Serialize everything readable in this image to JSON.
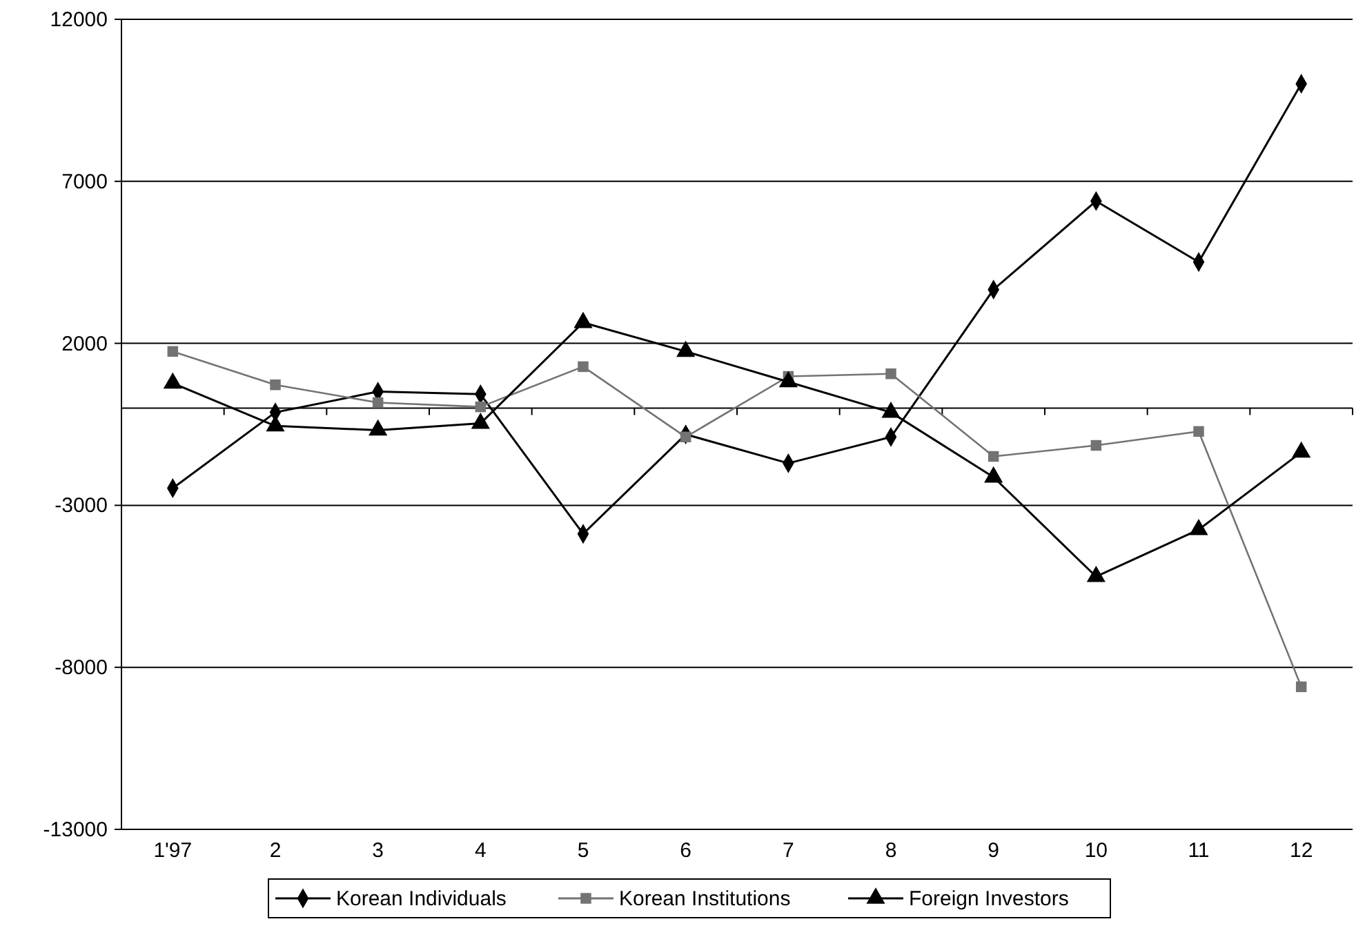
{
  "chart_data": {
    "type": "line",
    "categories": [
      "1'97",
      "2",
      "3",
      "4",
      "5",
      "6",
      "7",
      "8",
      "9",
      "10",
      "11",
      "12"
    ],
    "series": [
      {
        "name": "Korean Individuals",
        "color": "#000000",
        "marker": "diamond",
        "values": [
          -2470,
          -130,
          510,
          430,
          -3880,
          -810,
          -1700,
          -890,
          3660,
          6390,
          4510,
          10010
        ]
      },
      {
        "name": "Korean Institutions",
        "color": "#737373",
        "marker": "square",
        "values": [
          1750,
          720,
          170,
          40,
          1280,
          -890,
          980,
          1060,
          -1490,
          -1150,
          -720,
          -8600
        ]
      },
      {
        "name": "Foreign Investors",
        "color": "#000000",
        "marker": "triangle",
        "values": [
          770,
          -550,
          -680,
          -470,
          2640,
          1750,
          810,
          -130,
          -2130,
          -5200,
          -3750,
          -1360
        ]
      }
    ],
    "ylim": [
      -13000,
      12000
    ],
    "yticks": [
      -13000,
      -8000,
      -3000,
      2000,
      7000,
      12000
    ],
    "grid": "y",
    "legend": "bottom",
    "line_style": "solid"
  }
}
